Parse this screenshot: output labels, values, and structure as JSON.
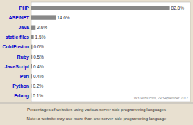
{
  "chart_data": {
    "type": "bar",
    "orientation": "horizontal",
    "title": "Percentages of websites using various server-side programming languages",
    "annotations": [
      "W3Techs.com, 29 September 2017",
      "Note: a website may use more than one server-side programming language"
    ],
    "categories": [
      "PHP",
      "ASP.NET",
      "Java",
      "static files",
      "ColdFusion",
      "Ruby",
      "JavaScript",
      "Perl",
      "Python",
      "Erlang"
    ],
    "values": [
      82.8,
      14.6,
      2.6,
      1.5,
      0.6,
      0.5,
      0.4,
      0.4,
      0.2,
      0.1
    ],
    "value_labels": [
      "82.8%",
      "14.6%",
      "2.6%",
      "1.5%",
      "0.6%",
      "0.5%",
      "0.4%",
      "0.4%",
      "0.2%",
      "0.1%"
    ],
    "data_labels": true,
    "color": "#888888",
    "xlim": [
      0,
      95
    ],
    "grid": false,
    "tick_labels": "y"
  }
}
